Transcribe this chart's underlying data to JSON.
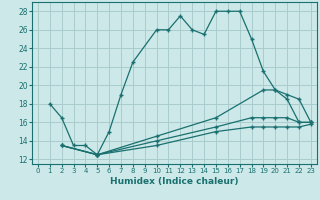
{
  "xlabel": "Humidex (Indice chaleur)",
  "bg_color": "#cce8e8",
  "grid_color": "#aacccc",
  "line_color": "#1a7070",
  "xlim": [
    -0.5,
    23.5
  ],
  "ylim": [
    11.5,
    29
  ],
  "xticks": [
    0,
    1,
    2,
    3,
    4,
    5,
    6,
    7,
    8,
    9,
    10,
    11,
    12,
    13,
    14,
    15,
    16,
    17,
    18,
    19,
    20,
    21,
    22,
    23
  ],
  "yticks": [
    12,
    14,
    16,
    18,
    20,
    22,
    24,
    26,
    28
  ],
  "line1_x": [
    1,
    2,
    3,
    4,
    5,
    6,
    7,
    8,
    10,
    11,
    12,
    13,
    14,
    15,
    16,
    17,
    18,
    19,
    20,
    21,
    22,
    23
  ],
  "line1_y": [
    18,
    16.5,
    13.5,
    13.5,
    12.5,
    15,
    19,
    22.5,
    26,
    26,
    27.5,
    26,
    25.5,
    28,
    28,
    28,
    25,
    21.5,
    19.5,
    18.5,
    16,
    16
  ],
  "line2_x": [
    2,
    5,
    10,
    15,
    19,
    20,
    21,
    22,
    23
  ],
  "line2_y": [
    13.5,
    12.5,
    14.5,
    16.5,
    19.5,
    19.5,
    19,
    18.5,
    16
  ],
  "line3_x": [
    2,
    5,
    10,
    15,
    18,
    19,
    20,
    21,
    22,
    23
  ],
  "line3_y": [
    13.5,
    12.5,
    14.0,
    15.5,
    16.5,
    16.5,
    16.5,
    16.5,
    16.0,
    16.0
  ],
  "line4_x": [
    2,
    5,
    10,
    15,
    18,
    19,
    20,
    21,
    22,
    23
  ],
  "line4_y": [
    13.5,
    12.5,
    13.5,
    15.0,
    15.5,
    15.5,
    15.5,
    15.5,
    15.5,
    15.8
  ]
}
